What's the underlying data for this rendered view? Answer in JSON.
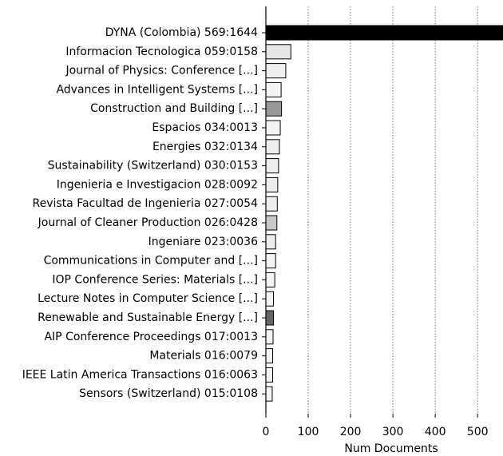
{
  "chart_data": {
    "type": "barh",
    "xlabel": "Num Documents",
    "categories": [
      "DYNA (Colombia) 569:1644",
      "Informacion Tecnologica 059:0158",
      "Journal of Physics: Conference [...]",
      "Advances in Intelligent Systems [...]",
      "Construction and Building [...]",
      "Espacios 034:0013",
      "Energies 032:0134",
      "Sustainability (Switzerland) 030:0153",
      "Ingenieria e Investigacion 028:0092",
      "Revista Facultad de Ingenieria 027:0054",
      "Journal of Cleaner Production 026:0428",
      "Ingeniare 023:0036",
      "Communications in Computer and [...]",
      "IOP Conference Series: Materials [...]",
      "Lecture Notes in Computer Science [...]",
      "Renewable and Sustainable Energy [...]",
      "AIP Conference Proceedings 017:0013",
      "Materials 016:0079",
      "IEEE Latin America Transactions 016:0063",
      "Sensors (Switzerland) 015:0108"
    ],
    "values": [
      569,
      59,
      47,
      36,
      37,
      34,
      32,
      30,
      28,
      27,
      26,
      23,
      23,
      21,
      18,
      18,
      17,
      16,
      16,
      15
    ],
    "colors": [
      "#000000",
      "#e6e6e6",
      "#efefef",
      "#f4f4f4",
      "#999999",
      "#f4f4f4",
      "#ededed",
      "#ededed",
      "#ededed",
      "#ededed",
      "#c8c8c8",
      "#ededed",
      "#f4f4f4",
      "#f4f4f4",
      "#f4f4f4",
      "#666666",
      "#f4f4f4",
      "#f4f4f4",
      "#f4f4f4",
      "#f4f4f4"
    ],
    "xlim": [
      0,
      560
    ],
    "xticks": [
      0,
      100,
      200,
      300,
      400,
      500
    ],
    "grid": true
  }
}
